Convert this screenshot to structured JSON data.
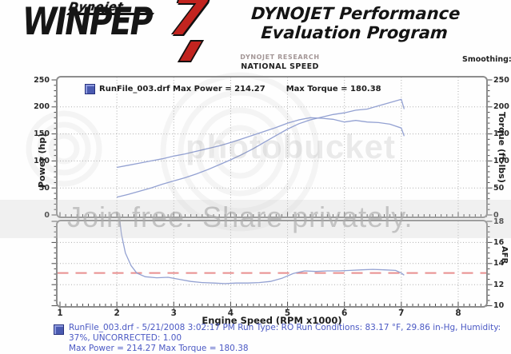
{
  "header": {
    "brand_script": "Dynojet",
    "brand_main": "WINPEP",
    "brand_seven": "7",
    "title_line1": "DYNOJET Performance",
    "title_line2": "Evaluation Program"
  },
  "subheader": {
    "research": "DYNOJET RESEARCH",
    "shop_name": "NATIONAL SPEED",
    "smoothing_label": "Smoothing:"
  },
  "legend": {
    "run_power": "RunFile_003.drf Max Power = 214.27",
    "run_torque": "Max Torque = 180.38"
  },
  "axes": {
    "left": "Power (hp)",
    "right": "Torque (ft-lbs)",
    "lower_right": "AFR",
    "x": "Engine Speed (RPM x1000)"
  },
  "watermark": {
    "join": "Join free. Share privately.",
    "brand": "photobucket"
  },
  "footer": {
    "line1": "RunFile_003.drf - 5/21/2008 3:02:17 PM  Run Type: RO  Run Conditions: 83.17 °F, 29.86 in-Hg,  Humidity:",
    "line2": "37%, UNCORRECTED: 1.00",
    "line3": "Max Power = 214.27  Max Torque = 180.38"
  },
  "colors": {
    "curve": "#93a1d2",
    "legend_square": "#4a5ab0",
    "footer_text": "#4b59c4",
    "ref_line": "#e88f8f",
    "brand_red": "#c2241f",
    "grid": "#adadad",
    "frame": "#8d8d8d"
  },
  "chart_data": [
    {
      "type": "line",
      "title": "RunFile_003.drf Max Power = 214.27  Max Torque = 180.38",
      "xlabel": "Engine Speed (RPM x1000)",
      "ylabel_left": "Power (hp)",
      "ylabel_right": "Torque (ft-lbs)",
      "xlim": [
        1,
        8.5
      ],
      "ylim": [
        0,
        250
      ],
      "x_ticks": [
        1,
        2,
        3,
        4,
        5,
        6,
        7,
        8
      ],
      "y_ticks": [
        0,
        50,
        100,
        150,
        200,
        250
      ],
      "grid": true,
      "max_power": 214.27,
      "max_torque": 180.38,
      "x": [
        2.0,
        2.2,
        2.4,
        2.6,
        2.8,
        3.0,
        3.2,
        3.4,
        3.6,
        3.8,
        4.0,
        4.2,
        4.4,
        4.6,
        4.8,
        5.0,
        5.2,
        5.4,
        5.6,
        5.8,
        6.0,
        6.2,
        6.4,
        6.6,
        6.8,
        7.0,
        7.05
      ],
      "series": [
        {
          "name": "power_hp",
          "values": [
            33,
            38,
            44,
            50,
            57,
            63,
            69,
            76,
            84,
            93,
            102,
            112,
            123,
            135,
            147,
            159,
            169,
            176,
            181,
            186,
            189,
            194,
            196,
            202,
            208,
            214,
            196
          ]
        },
        {
          "name": "torque_ftlbs",
          "values": [
            88,
            92,
            96,
            100,
            104,
            109,
            113,
            118,
            123,
            128,
            134,
            141,
            148,
            155,
            162,
            170,
            176,
            180,
            179,
            177,
            172,
            175,
            172,
            171,
            168,
            161,
            146
          ]
        }
      ]
    },
    {
      "type": "line",
      "ylabel_right": "AFR",
      "xlim": [
        1,
        8.5
      ],
      "ylim": [
        10,
        18
      ],
      "y_ticks": [
        10,
        12,
        14,
        16,
        18
      ],
      "grid": true,
      "ref_line": 13.1,
      "x": [
        2.02,
        2.08,
        2.15,
        2.25,
        2.35,
        2.5,
        2.7,
        2.9,
        3.1,
        3.3,
        3.5,
        3.7,
        3.9,
        4.1,
        4.3,
        4.5,
        4.7,
        4.9,
        5.1,
        5.3,
        5.5,
        5.7,
        5.9,
        6.1,
        6.3,
        6.5,
        6.7,
        6.9,
        7.0,
        7.05
      ],
      "series": [
        {
          "name": "afr",
          "values": [
            19.5,
            16.8,
            15.0,
            13.8,
            13.1,
            12.75,
            12.65,
            12.7,
            12.5,
            12.3,
            12.2,
            12.15,
            12.1,
            12.15,
            12.15,
            12.2,
            12.3,
            12.6,
            13.05,
            13.3,
            13.25,
            13.3,
            13.3,
            13.35,
            13.4,
            13.45,
            13.4,
            13.35,
            13.1,
            12.9
          ]
        }
      ]
    }
  ]
}
